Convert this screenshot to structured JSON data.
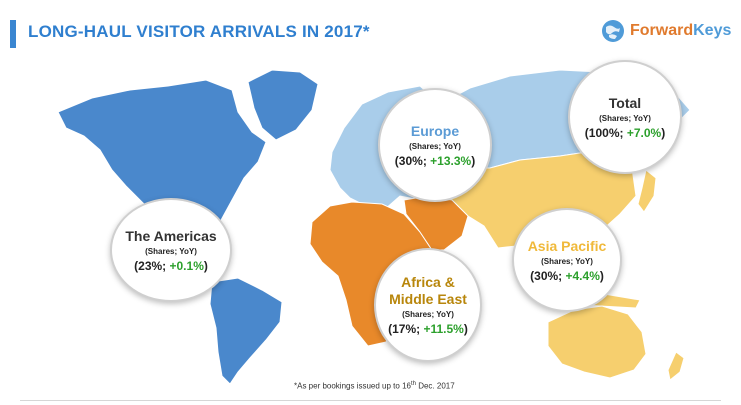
{
  "header": {
    "title": "LONG-HAUL VISITOR ARRIVALS IN 2017*"
  },
  "logo": {
    "brand_part1": "Forward",
    "brand_part2": "Keys"
  },
  "regions": [
    {
      "id": "americas",
      "name": "The Americas",
      "subtitle": "(Shares; YoY)",
      "share": "23%;",
      "yoy": "+0.1%",
      "name_color": "#333333",
      "region_color": "#4a88cc"
    },
    {
      "id": "europe",
      "name": "Europe",
      "subtitle": "(Shares; YoY)",
      "share": "30%;",
      "yoy": "+13.3%",
      "name_color": "#5b9bd5",
      "region_color": "#a9cdea"
    },
    {
      "id": "africa_me",
      "name": "Africa &\nMiddle East",
      "subtitle": "(Shares; YoY)",
      "share": "17%;",
      "yoy": "+11.5%",
      "name_color": "#b8860b",
      "region_color": "#e8892a"
    },
    {
      "id": "asia_pacific",
      "name": "Asia Pacific",
      "subtitle": "(Shares; YoY)",
      "share": "30%;",
      "yoy": "+4.4%",
      "name_color": "#f0b93a",
      "region_color": "#f6cf6e"
    },
    {
      "id": "total",
      "name": "Total",
      "subtitle": "(Shares; YoY)",
      "share": "100%;",
      "yoy": "+7.0%",
      "name_color": "#333333",
      "region_color": "#a9cdea"
    }
  ],
  "footnote": {
    "text_pre": "*As per bookings issued up to 16",
    "superscript": "th",
    "text_post": " Dec. 2017"
  }
}
